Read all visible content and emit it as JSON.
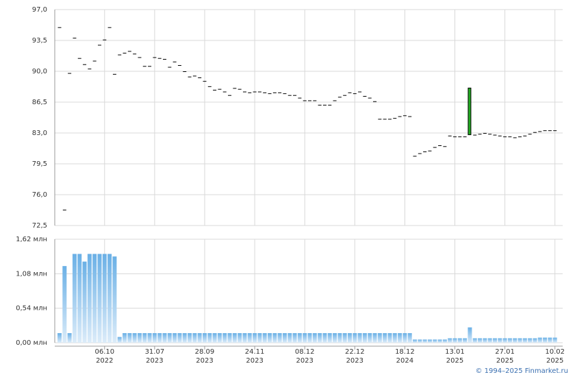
{
  "chart_data": [
    {
      "type": "candlestick",
      "ylim": [
        72.5,
        97
      ],
      "yticks": [
        {
          "value": 72.5,
          "label": "72,5"
        },
        {
          "value": 76,
          "label": "76,0"
        },
        {
          "value": 79.5,
          "label": "79,5"
        },
        {
          "value": 83,
          "label": "83,0"
        },
        {
          "value": 86.5,
          "label": "86,5"
        },
        {
          "value": 90,
          "label": "90,0"
        },
        {
          "value": 93.5,
          "label": "93,5"
        },
        {
          "value": 97,
          "label": "97,0"
        }
      ],
      "grid": true,
      "color": "#000000",
      "up_color": "#22aa22",
      "open": [
        95.0,
        74.3,
        89.8,
        93.8,
        91.5,
        90.8,
        90.3,
        91.2,
        93.0,
        93.6,
        95.0,
        89.7,
        91.9,
        92.1,
        92.3,
        92.0,
        91.6,
        90.6,
        90.6,
        91.6,
        91.5,
        91.4,
        90.5,
        91.1,
        90.7,
        90.0,
        89.4,
        89.5,
        89.3,
        88.9,
        88.3,
        87.9,
        88.0,
        87.7,
        87.3,
        88.1,
        88.0,
        87.7,
        87.6,
        87.7,
        87.7,
        87.6,
        87.5,
        87.6,
        87.6,
        87.5,
        87.3,
        87.3,
        87.0,
        86.7,
        86.7,
        86.7,
        86.2,
        86.2,
        86.2,
        86.7,
        87.1,
        87.3,
        87.6,
        87.5,
        87.7,
        87.2,
        87.0,
        86.6,
        84.6,
        84.6,
        84.6,
        84.7,
        84.9,
        85.0,
        84.9,
        80.4,
        80.7,
        80.9,
        81.0,
        81.4,
        81.6,
        81.5,
        82.7,
        82.6,
        82.6,
        82.6,
        82.8,
        82.8,
        82.9,
        83.0,
        82.9,
        82.8,
        82.7,
        82.6,
        82.6,
        82.5,
        82.6,
        82.7,
        82.9,
        83.1,
        83.2,
        83.3,
        83.3,
        83.3
      ],
      "close": [
        95.0,
        74.3,
        89.8,
        93.8,
        91.5,
        90.8,
        90.3,
        91.2,
        93.0,
        93.6,
        95.0,
        89.7,
        91.9,
        92.1,
        92.3,
        92.0,
        91.6,
        90.6,
        90.6,
        91.6,
        91.5,
        91.4,
        90.5,
        91.1,
        90.7,
        90.0,
        89.4,
        89.5,
        89.3,
        88.9,
        88.3,
        87.9,
        88.0,
        87.7,
        87.3,
        88.1,
        88.0,
        87.7,
        87.6,
        87.7,
        87.7,
        87.6,
        87.5,
        87.6,
        87.6,
        87.5,
        87.3,
        87.3,
        87.0,
        86.7,
        86.7,
        86.7,
        86.2,
        86.2,
        86.2,
        86.7,
        87.1,
        87.3,
        87.6,
        87.5,
        87.7,
        87.2,
        87.0,
        86.6,
        84.6,
        84.6,
        84.6,
        84.7,
        84.9,
        85.0,
        84.9,
        80.4,
        80.7,
        80.9,
        81.0,
        81.4,
        81.6,
        81.5,
        82.7,
        82.6,
        82.6,
        82.6,
        88.1,
        82.8,
        82.9,
        83.0,
        82.9,
        82.8,
        82.7,
        82.6,
        82.6,
        82.5,
        82.6,
        82.7,
        82.9,
        83.1,
        83.2,
        83.3,
        83.3,
        83.3
      ]
    },
    {
      "type": "bar",
      "ylim": [
        0,
        1.62
      ],
      "yticks": [
        {
          "value": 0,
          "label": "0,00 млн"
        },
        {
          "value": 0.54,
          "label": "0,54 млн"
        },
        {
          "value": 1.08,
          "label": "1,08 млн"
        },
        {
          "value": 1.62,
          "label": "1,62 млн"
        }
      ],
      "grid": true,
      "color": "#6ab0e6",
      "categories": [
        null,
        null,
        null,
        null,
        null,
        null,
        null,
        null,
        null,
        "06.10\n2022",
        null,
        null,
        null,
        null,
        null,
        null,
        null,
        null,
        null,
        "31.07\n2023",
        null,
        null,
        null,
        null,
        null,
        null,
        null,
        null,
        null,
        "28.09\n2023",
        null,
        null,
        null,
        null,
        null,
        null,
        null,
        null,
        null,
        "24.11\n2023",
        null,
        null,
        null,
        null,
        null,
        null,
        null,
        null,
        null,
        "08.12\n2023",
        null,
        null,
        null,
        null,
        null,
        null,
        null,
        null,
        null,
        "22.12\n2023",
        null,
        null,
        null,
        null,
        null,
        null,
        null,
        null,
        null,
        "18.12\n2024",
        null,
        null,
        null,
        null,
        null,
        null,
        null,
        null,
        null,
        "13.01\n2025",
        null,
        null,
        null,
        null,
        null,
        null,
        null,
        null,
        null,
        "27.01\n2025",
        null,
        null,
        null,
        null,
        null,
        null,
        null,
        null,
        null,
        "10.02\n2025"
      ],
      "values": [
        0.15,
        1.2,
        0.15,
        1.39,
        1.39,
        1.27,
        1.39,
        1.39,
        1.39,
        1.39,
        1.39,
        1.35,
        0.09,
        0.15,
        0.15,
        0.15,
        0.15,
        0.15,
        0.15,
        0.15,
        0.15,
        0.15,
        0.15,
        0.15,
        0.15,
        0.15,
        0.15,
        0.15,
        0.15,
        0.15,
        0.15,
        0.15,
        0.15,
        0.15,
        0.15,
        0.15,
        0.15,
        0.15,
        0.15,
        0.15,
        0.15,
        0.15,
        0.15,
        0.15,
        0.15,
        0.15,
        0.15,
        0.15,
        0.15,
        0.15,
        0.15,
        0.15,
        0.15,
        0.15,
        0.15,
        0.15,
        0.15,
        0.15,
        0.15,
        0.15,
        0.15,
        0.15,
        0.15,
        0.15,
        0.15,
        0.15,
        0.15,
        0.15,
        0.15,
        0.15,
        0.15,
        0.05,
        0.05,
        0.05,
        0.05,
        0.05,
        0.05,
        0.05,
        0.07,
        0.07,
        0.07,
        0.07,
        0.24,
        0.07,
        0.07,
        0.07,
        0.07,
        0.07,
        0.07,
        0.07,
        0.07,
        0.07,
        0.07,
        0.07,
        0.07,
        0.07,
        0.08,
        0.08,
        0.08,
        0.08
      ]
    }
  ],
  "copyright": "© 1994–2025 Finmarket.ru"
}
